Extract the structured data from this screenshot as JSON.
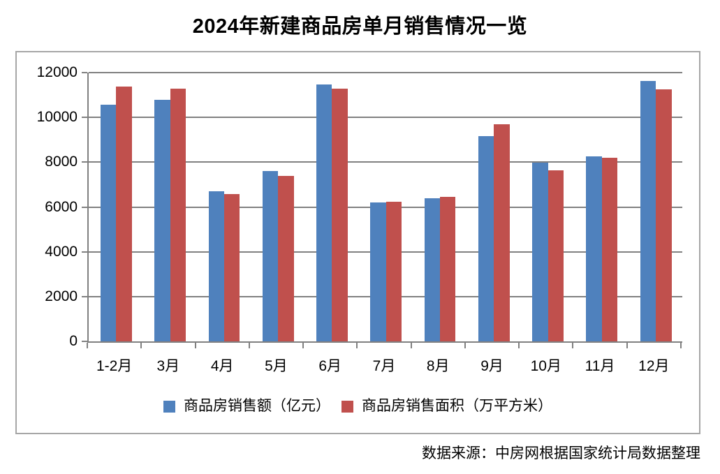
{
  "page": {
    "title": "2024年新建商品房单月销售情况一览",
    "source_note": "数据来源：中房网根据国家统计局数据整理"
  },
  "chart_data": {
    "type": "bar",
    "title": "2024年新建商品房单月销售情况一览",
    "categories": [
      "1-2月",
      "3月",
      "4月",
      "5月",
      "6月",
      "7月",
      "8月",
      "9月",
      "10月",
      "11月",
      "12月"
    ],
    "series": [
      {
        "id": "sales-amount",
        "name": "商品房销售额（亿元）",
        "color": "#4F81BD",
        "values": [
          10566,
          10789,
          6712,
          7598,
          11468,
          6197,
          6393,
          9157,
          7975,
          8270,
          11625
        ]
      },
      {
        "id": "sales-area",
        "name": "商品房销售面积（万平方米）",
        "color": "#C0504D",
        "values": [
          11369,
          11299,
          6584,
          7390,
          11274,
          6233,
          6453,
          9682,
          7646,
          8188,
          11267
        ]
      }
    ],
    "ylim": [
      0,
      12000
    ],
    "ytick_interval": 2000,
    "ytick_labels": [
      "0",
      "2000",
      "4000",
      "6000",
      "8000",
      "10000",
      "12000"
    ],
    "grid": true,
    "legend_position": "bottom",
    "source_note": "数据来源：中房网根据国家统计局数据整理",
    "colors": {
      "grid": "#808080",
      "axis": "#808080",
      "chart_border": "#A6A6A6",
      "text": "#000000",
      "background": "#FFFFFF"
    }
  }
}
